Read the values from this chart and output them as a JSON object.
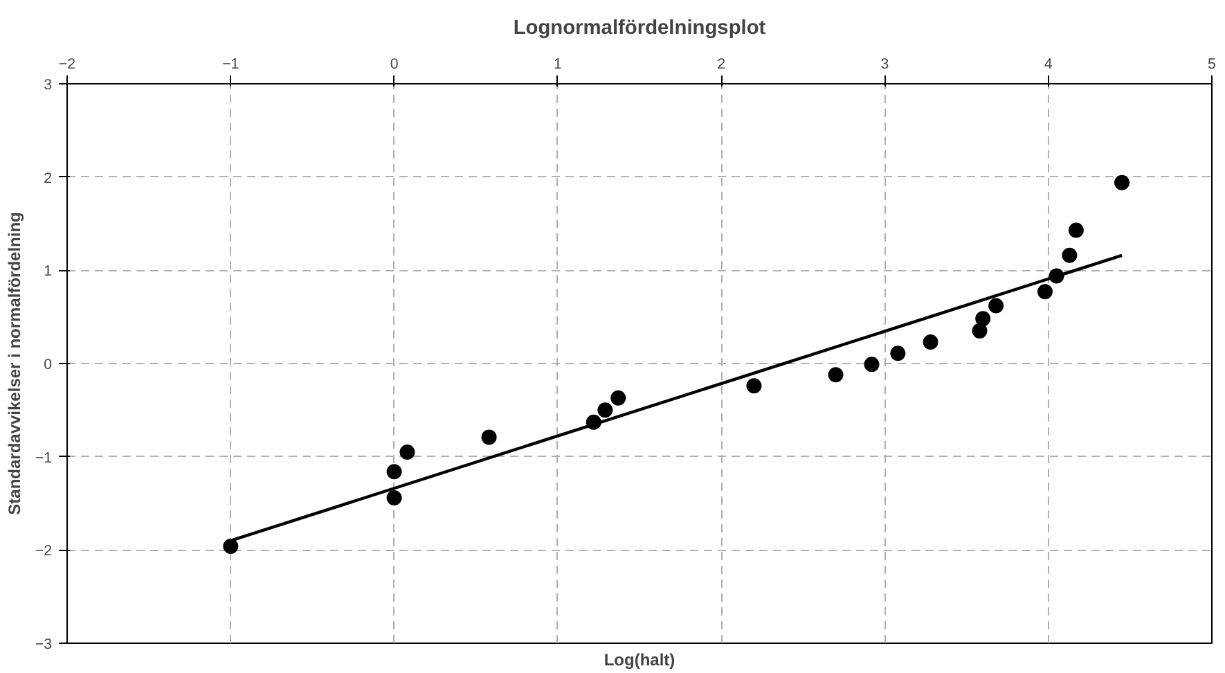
{
  "chart_data": {
    "type": "scatter",
    "title": "Lognormalfördelningsplot",
    "xlabel": "Log(halt)",
    "ylabel": "Standardavvikelser i normalfördelning",
    "xlim": [
      -2,
      5
    ],
    "xticks": [
      -2,
      -1,
      0,
      1,
      2,
      3,
      4,
      5
    ],
    "ylim": [
      -3,
      3
    ],
    "yticks": [
      -3,
      -2,
      -1,
      0,
      1,
      2,
      3
    ],
    "grid": true,
    "marker": "circle",
    "series": [
      {
        "color": "#000000",
        "x": [
          -1,
          0,
          0,
          0.08,
          0.58,
          1.22,
          1.29,
          1.37,
          2.2,
          2.7,
          2.92,
          3.08,
          3.28,
          3.58,
          3.6,
          3.68,
          3.98,
          4.05,
          4.13,
          4.17,
          4.45
        ],
        "values": [
          -1.96,
          -1.44,
          -1.16,
          -0.95,
          -0.79,
          -0.63,
          -0.5,
          -0.37,
          -0.24,
          -0.12,
          -0.01,
          0.11,
          0.23,
          0.35,
          0.48,
          0.62,
          0.77,
          0.94,
          1.16,
          1.43,
          1.94
        ]
      },
      {
        "type": "line",
        "marker": "none",
        "color": "#000000",
        "x": [
          -1,
          4.45
        ],
        "values": [
          -1.9,
          1.16
        ]
      }
    ]
  }
}
